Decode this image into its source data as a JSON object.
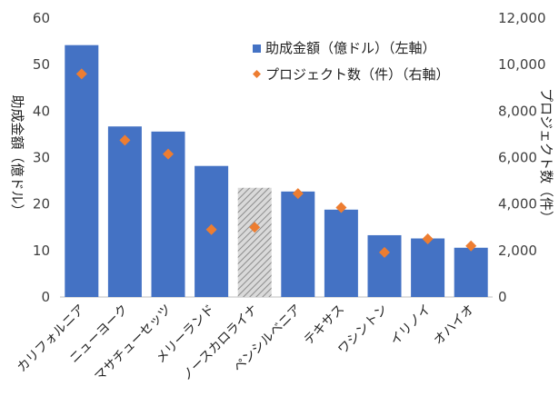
{
  "chart_data": {
    "type": "bar",
    "categories": [
      "カリフォルニア",
      "ニューヨーク",
      "マサチューセッツ",
      "メリーランド",
      "ノースカロライナ",
      "ペンシルベニア",
      "テキサス",
      "ワシントン",
      "イリノイ",
      "オハイオ"
    ],
    "series": [
      {
        "name": "助成金額（億ドル）（左軸）",
        "type": "bar",
        "axis": "left",
        "color": "#4472C4",
        "highlight_color": "#A6A6A6",
        "highlight_index": 4,
        "values": [
          54.2,
          36.7,
          35.6,
          28.2,
          23.5,
          22.7,
          18.8,
          13.3,
          12.6,
          10.6
        ]
      },
      {
        "name": "プロジェクト数（件）（右軸）",
        "type": "scatter",
        "axis": "right",
        "marker": "diamond",
        "color": "#ED7D31",
        "values": [
          9600,
          6750,
          6150,
          2900,
          3000,
          4450,
          3850,
          1920,
          2500,
          2200
        ]
      }
    ],
    "ylabel": "助成金額（億ドル）",
    "y2label": "プロジェクト数（件）",
    "ylim": [
      0,
      60
    ],
    "y2lim": [
      0,
      12000
    ],
    "yticks": [
      "0",
      "10",
      "20",
      "30",
      "40",
      "50",
      "60"
    ],
    "y2ticks": [
      "0",
      "2,000",
      "4,000",
      "6,000",
      "8,000",
      "10,000",
      "12,000"
    ],
    "grid": false,
    "legend_position": "top-right"
  }
}
